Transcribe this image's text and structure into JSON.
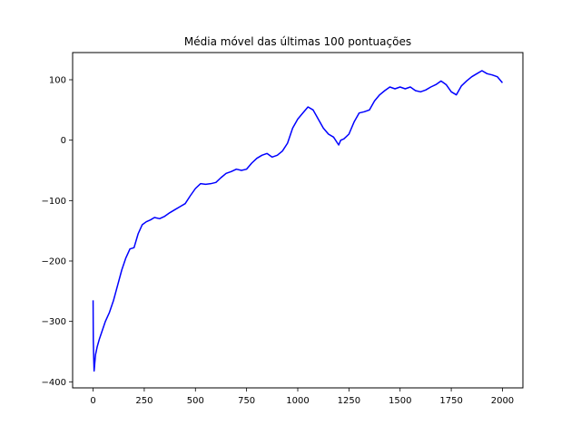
{
  "chart_data": {
    "type": "line",
    "title": "Média móvel das últimas 100 pontuações",
    "xlabel": "",
    "ylabel": "",
    "xlim": [
      -100,
      2100
    ],
    "ylim": [
      -410,
      145
    ],
    "xticks": [
      {
        "value": 0,
        "label": "0"
      },
      {
        "value": 250,
        "label": "250"
      },
      {
        "value": 500,
        "label": "500"
      },
      {
        "value": 750,
        "label": "750"
      },
      {
        "value": 1000,
        "label": "1000"
      },
      {
        "value": 1250,
        "label": "1250"
      },
      {
        "value": 1500,
        "label": "1500"
      },
      {
        "value": 1750,
        "label": "1750"
      },
      {
        "value": 2000,
        "label": "2000"
      }
    ],
    "yticks": [
      {
        "value": -400,
        "label": "−400"
      },
      {
        "value": -300,
        "label": "−300"
      },
      {
        "value": -200,
        "label": "−200"
      },
      {
        "value": -100,
        "label": "−100"
      },
      {
        "value": 0,
        "label": "0"
      },
      {
        "value": 100,
        "label": "100"
      }
    ],
    "grid": false,
    "series": [
      {
        "color": "#0000ff",
        "x": [
          0,
          1,
          3,
          5,
          8,
          12,
          20,
          30,
          45,
          60,
          80,
          100,
          120,
          140,
          160,
          180,
          200,
          220,
          240,
          260,
          280,
          300,
          325,
          350,
          375,
          400,
          425,
          450,
          475,
          500,
          525,
          550,
          575,
          600,
          625,
          650,
          675,
          700,
          725,
          750,
          775,
          800,
          825,
          850,
          875,
          900,
          925,
          950,
          975,
          1000,
          1025,
          1050,
          1075,
          1100,
          1125,
          1150,
          1175,
          1200,
          1210,
          1225,
          1250,
          1275,
          1300,
          1325,
          1350,
          1375,
          1400,
          1425,
          1450,
          1475,
          1500,
          1525,
          1550,
          1575,
          1600,
          1625,
          1650,
          1675,
          1700,
          1725,
          1750,
          1775,
          1800,
          1825,
          1850,
          1875,
          1900,
          1925,
          1950,
          1975,
          2000
        ],
        "y": [
          -265,
          -330,
          -360,
          -382,
          -370,
          -355,
          -342,
          -330,
          -315,
          -300,
          -285,
          -265,
          -240,
          -215,
          -195,
          -180,
          -178,
          -155,
          -140,
          -135,
          -132,
          -128,
          -130,
          -126,
          -120,
          -115,
          -110,
          -105,
          -92,
          -80,
          -72,
          -73,
          -72,
          -70,
          -62,
          -55,
          -52,
          -48,
          -50,
          -48,
          -38,
          -30,
          -25,
          -22,
          -28,
          -25,
          -18,
          -5,
          20,
          35,
          45,
          55,
          50,
          35,
          20,
          10,
          5,
          -8,
          0,
          2,
          10,
          30,
          45,
          47,
          50,
          65,
          75,
          82,
          88,
          85,
          88,
          85,
          88,
          82,
          80,
          83,
          88,
          92,
          98,
          92,
          80,
          75,
          90,
          98,
          105,
          110,
          115,
          110,
          108,
          105,
          95
        ]
      }
    ]
  }
}
